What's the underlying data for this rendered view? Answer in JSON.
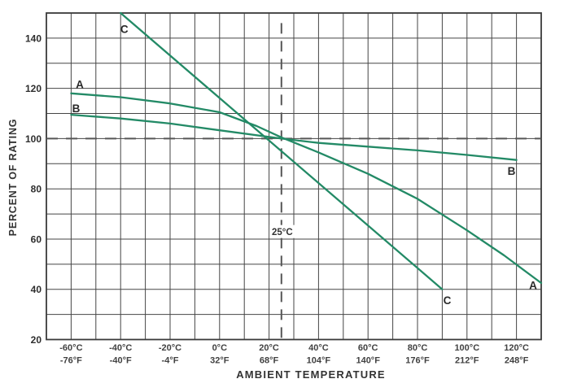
{
  "chart_data": {
    "type": "line",
    "title": "",
    "xlabel": "AMBIENT TEMPERATURE",
    "ylabel": "PERCENT OF RATING",
    "xlim": [
      -70,
      130
    ],
    "ylim": [
      20,
      150
    ],
    "x_grid_step": 10,
    "y_grid_step": 10,
    "grid": "on",
    "legend": "inline-curve-labels",
    "colors": {
      "curve": "#238a66",
      "grid": "#454545",
      "border": "#3a3a3a",
      "dashed_reference": "#565656",
      "tick_text": "#414141",
      "label_text": "#2b2b2b"
    },
    "y_ticks": [
      "20",
      "40",
      "60",
      "80",
      "100",
      "120",
      "140"
    ],
    "y_tick_values": [
      20,
      40,
      60,
      80,
      100,
      120,
      140
    ],
    "x_ticks": [
      {
        "value": -60,
        "celsius": "-60°C",
        "fahrenheit": "-76°F"
      },
      {
        "value": -40,
        "celsius": "-40°C",
        "fahrenheit": "-40°F"
      },
      {
        "value": -20,
        "celsius": "-20°C",
        "fahrenheit": "-4°F"
      },
      {
        "value": 0,
        "celsius": "0°C",
        "fahrenheit": "32°F"
      },
      {
        "value": 20,
        "celsius": "20°C",
        "fahrenheit": "68°F"
      },
      {
        "value": 40,
        "celsius": "40°C",
        "fahrenheit": "104°F"
      },
      {
        "value": 60,
        "celsius": "60°C",
        "fahrenheit": "140°F"
      },
      {
        "value": 80,
        "celsius": "80°C",
        "fahrenheit": "176°F"
      },
      {
        "value": 100,
        "celsius": "100°C",
        "fahrenheit": "212°F"
      },
      {
        "value": 120,
        "celsius": "120°C",
        "fahrenheit": "248°F"
      }
    ],
    "reference_lines": {
      "horizontal": {
        "value": 100,
        "style": "dashed",
        "from": -70,
        "to": 130
      },
      "vertical": {
        "value": 25,
        "style": "dashed",
        "from": 20,
        "to": 146,
        "label": "25°C",
        "label_at_percent": 63
      }
    },
    "series": [
      {
        "name": "A",
        "points": [
          [
            -60,
            118
          ],
          [
            -40,
            116.5
          ],
          [
            -20,
            114
          ],
          [
            0,
            110.5
          ],
          [
            15,
            105
          ],
          [
            25,
            100.5
          ],
          [
            40,
            94.5
          ],
          [
            60,
            86
          ],
          [
            80,
            76
          ],
          [
            100,
            63.5
          ],
          [
            115,
            53.5
          ],
          [
            130,
            42.5
          ]
        ],
        "labels": [
          {
            "text": "A",
            "x": -56.5,
            "y": 121.5
          },
          {
            "text": "A",
            "x": 126.7,
            "y": 41.5
          }
        ]
      },
      {
        "name": "B",
        "points": [
          [
            -60,
            109.5
          ],
          [
            -40,
            108
          ],
          [
            -20,
            106
          ],
          [
            0,
            103.3
          ],
          [
            25,
            100
          ],
          [
            40,
            98.3
          ],
          [
            60,
            96.8
          ],
          [
            80,
            95.3
          ],
          [
            100,
            93.5
          ],
          [
            120,
            91.5
          ]
        ],
        "labels": [
          {
            "text": "B",
            "x": -58,
            "y": 112
          },
          {
            "text": "B",
            "x": 118,
            "y": 87
          }
        ]
      },
      {
        "name": "C",
        "points": [
          [
            -40,
            150
          ],
          [
            90,
            40
          ]
        ],
        "labels": [
          {
            "text": "C",
            "x": -38.5,
            "y": 143.5
          },
          {
            "text": "C",
            "x": 92,
            "y": 35.5
          }
        ]
      }
    ]
  }
}
